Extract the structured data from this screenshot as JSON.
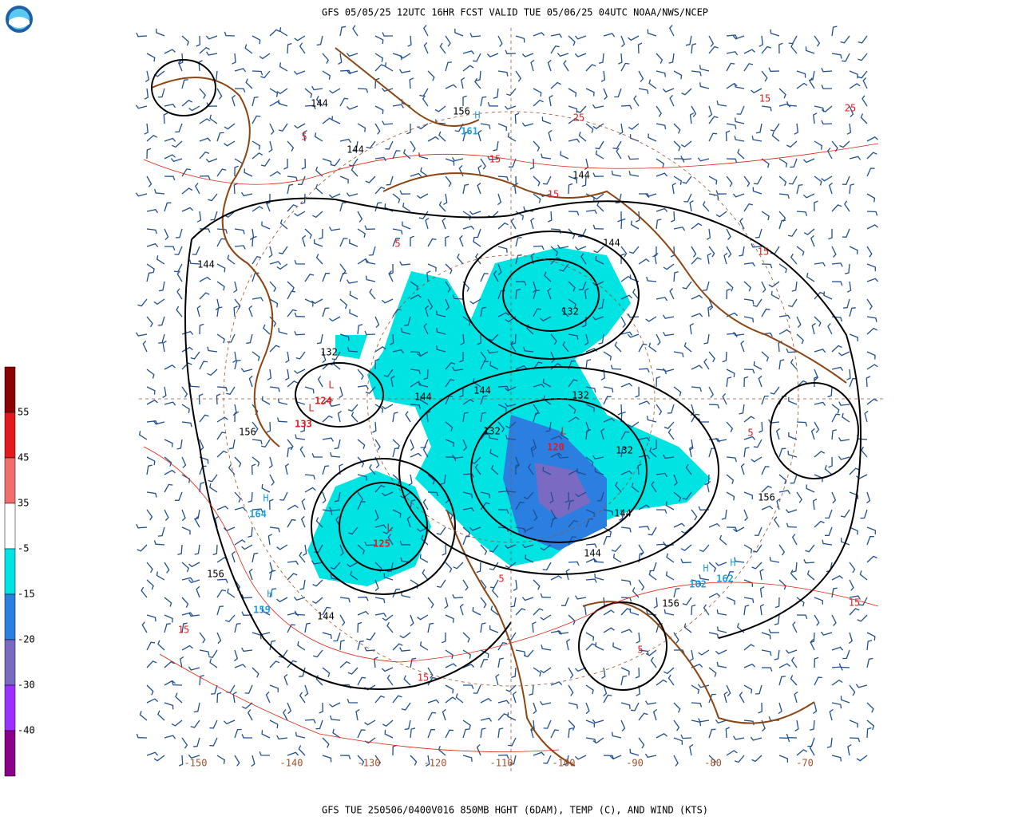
{
  "header": {
    "title": "GFS 05/05/25 12UTC 16HR FCST VALID TUE 05/06/25 04UTC NOAA/NWS/NCEP"
  },
  "footer": {
    "caption": "GFS TUE 250506/0400V016 850MB HGHT (6DAM), TEMP (C), AND WIND (KTS)"
  },
  "colorbar": {
    "colors": [
      "#8b0000",
      "#e31a1c",
      "#f26d6d",
      "#ffffff",
      "#00e3e3",
      "#2b7fe0",
      "#7a6ac2",
      "#9b30ff",
      "#8b008b"
    ],
    "labels": [
      "55",
      "45",
      "35",
      "-5",
      "-15",
      "-20",
      "-30",
      "-40"
    ]
  },
  "longitude_labels": [
    "-150",
    "-140",
    "-130",
    "-120",
    "-110",
    "-100",
    "-90",
    "-80",
    "-70"
  ],
  "systems": [
    {
      "symbol": "H",
      "value": "164"
    },
    {
      "symbol": "L",
      "value": "124"
    },
    {
      "symbol": "L",
      "value": "133"
    },
    {
      "symbol": "L",
      "value": "125"
    },
    {
      "symbol": "H",
      "value": "159"
    },
    {
      "symbol": "H",
      "value": "162"
    },
    {
      "symbol": "H",
      "value": "162"
    },
    {
      "symbol": "L",
      "value": "120"
    },
    {
      "symbol": "H",
      "value": "161"
    }
  ],
  "height_labels": [
    "144",
    "144",
    "144",
    "132",
    "144",
    "132",
    "132",
    "144",
    "144",
    "156",
    "156",
    "144",
    "132",
    "132",
    "144",
    "156",
    "156",
    "144",
    "156",
    "144"
  ],
  "temp_labels": [
    "5",
    "15",
    "25",
    "15",
    "5",
    "15",
    "25",
    "15",
    "5",
    "15",
    "5",
    "15",
    "5",
    "15"
  ]
}
